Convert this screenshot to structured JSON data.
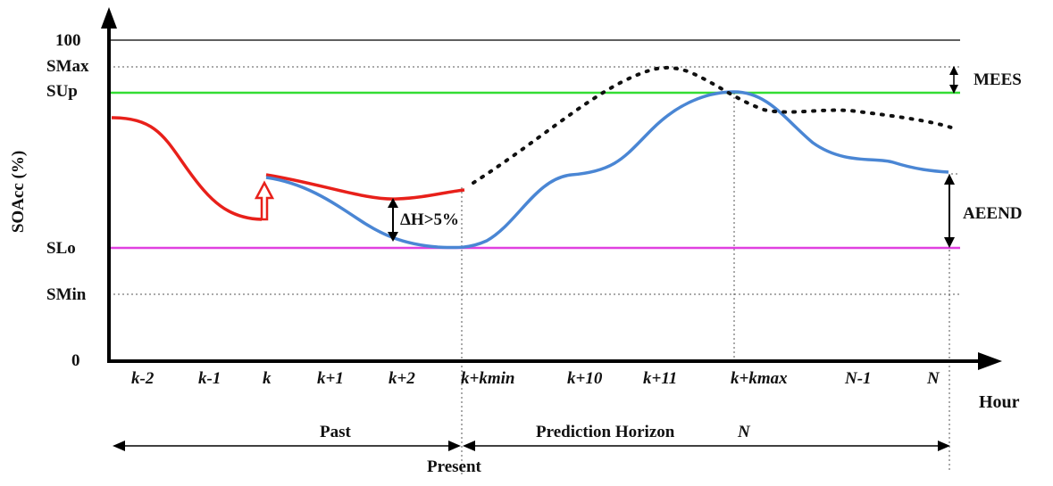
{
  "y_axis": {
    "title": "SOAcc (%)",
    "levels": [
      {
        "key": "top",
        "label": "100"
      },
      {
        "key": "smax",
        "label": "SMax"
      },
      {
        "key": "sup",
        "label": "SUp"
      },
      {
        "key": "slo",
        "label": "SLo"
      },
      {
        "key": "smin",
        "label": "SMin"
      },
      {
        "key": "zero",
        "label": "0"
      }
    ]
  },
  "x_axis": {
    "title": "Hour",
    "ticks": [
      "k-2",
      "k-1",
      "k",
      "k+1",
      "k+2",
      "k+kmin",
      "k+10",
      "k+11",
      "k+kmax",
      "N-1",
      "N"
    ]
  },
  "annotations": {
    "delta": "ΔH>5%",
    "mees": "MEES",
    "aeend": "AEEND",
    "past": "Past",
    "horizon": "Prediction Horizon",
    "horizon_n": "N",
    "present": "Present"
  },
  "colors": {
    "axis": "#000000",
    "past_curve": "#e8201a",
    "prediction_curve": "#4a86d4",
    "upper_limit": "#33dd33",
    "lower_limit": "#e040e0",
    "reference_dotted": "#111111",
    "grid_dotted": "#555555"
  }
}
